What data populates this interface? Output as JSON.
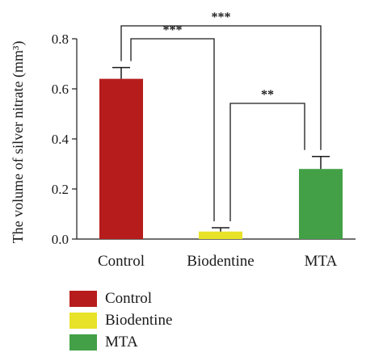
{
  "chart_data": {
    "type": "bar",
    "categories": [
      "Control",
      "Biodentine",
      "MTA"
    ],
    "values": [
      0.64,
      0.03,
      0.28
    ],
    "errors": [
      0.045,
      0.015,
      0.05
    ],
    "colors": [
      "#b71c1c",
      "#e8e229",
      "#43a047"
    ],
    "ylabel": "The volume of silver nitrate (mm³)",
    "ylim": [
      0,
      0.8
    ],
    "yticks": [
      "0.0",
      "0.2",
      "0.4",
      "0.6",
      "0.8"
    ],
    "grid": false,
    "legend_position": "bottom-left",
    "significance": [
      {
        "between": [
          "Control",
          "MTA"
        ],
        "label": "***"
      },
      {
        "between": [
          "Control",
          "Biodentine"
        ],
        "label": "***"
      },
      {
        "between": [
          "Biodentine",
          "MTA"
        ],
        "label": "**"
      }
    ]
  },
  "legend": [
    {
      "label": "Control",
      "color": "#b71c1c"
    },
    {
      "label": "Biodentine",
      "color": "#e8e229"
    },
    {
      "label": "MTA",
      "color": "#43a047"
    }
  ]
}
